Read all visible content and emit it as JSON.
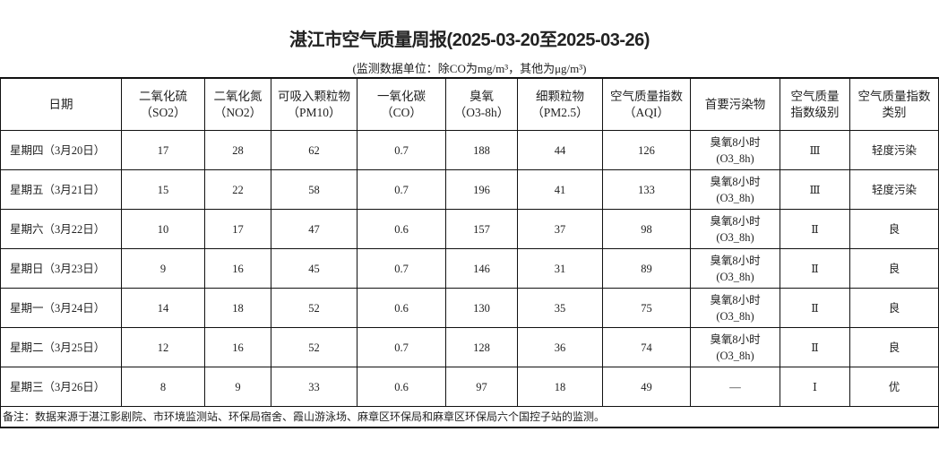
{
  "title": "湛江市空气质量周报(2025-03-20至2025-03-26)",
  "unit_note": "(监测数据单位：除CO为mg/m³，其他为μg/m³)",
  "columns": [
    {
      "l1": "日期",
      "l2": ""
    },
    {
      "l1": "二氧化硫",
      "l2": "（SO2）"
    },
    {
      "l1": "二氧化氮",
      "l2": "（NO2）"
    },
    {
      "l1": "可吸入颗粒物",
      "l2": "（PM10）"
    },
    {
      "l1": "一氧化碳",
      "l2": "（CO）"
    },
    {
      "l1": "臭氧",
      "l2": "（O3-8h）"
    },
    {
      "l1": "细颗粒物",
      "l2": "（PM2.5）"
    },
    {
      "l1": "空气质量指数",
      "l2": "（AQI）"
    },
    {
      "l1": "首要污染物",
      "l2": ""
    },
    {
      "l1": "空气质量",
      "l2": "指数级别"
    },
    {
      "l1": "空气质量指数",
      "l2": "类别"
    }
  ],
  "rows": [
    {
      "date": "星期四（3月20日）",
      "so2": "17",
      "no2": "28",
      "pm10": "62",
      "co": "0.7",
      "o3": "188",
      "pm25": "44",
      "aqi": "126",
      "primary": "臭氧8小时",
      "primary2": "(O3_8h)",
      "level": "Ⅲ",
      "category": "轻度污染"
    },
    {
      "date": "星期五（3月21日）",
      "so2": "15",
      "no2": "22",
      "pm10": "58",
      "co": "0.7",
      "o3": "196",
      "pm25": "41",
      "aqi": "133",
      "primary": "臭氧8小时",
      "primary2": "(O3_8h)",
      "level": "Ⅲ",
      "category": "轻度污染"
    },
    {
      "date": "星期六（3月22日）",
      "so2": "10",
      "no2": "17",
      "pm10": "47",
      "co": "0.6",
      "o3": "157",
      "pm25": "37",
      "aqi": "98",
      "primary": "臭氧8小时",
      "primary2": "(O3_8h)",
      "level": "Ⅱ",
      "category": "良"
    },
    {
      "date": "星期日（3月23日）",
      "so2": "9",
      "no2": "16",
      "pm10": "45",
      "co": "0.7",
      "o3": "146",
      "pm25": "31",
      "aqi": "89",
      "primary": "臭氧8小时",
      "primary2": "(O3_8h)",
      "level": "Ⅱ",
      "category": "良"
    },
    {
      "date": "星期一（3月24日）",
      "so2": "14",
      "no2": "18",
      "pm10": "52",
      "co": "0.6",
      "o3": "130",
      "pm25": "35",
      "aqi": "75",
      "primary": "臭氧8小时",
      "primary2": "(O3_8h)",
      "level": "Ⅱ",
      "category": "良"
    },
    {
      "date": "星期二（3月25日）",
      "so2": "12",
      "no2": "16",
      "pm10": "52",
      "co": "0.7",
      "o3": "128",
      "pm25": "36",
      "aqi": "74",
      "primary": "臭氧8小时",
      "primary2": "(O3_8h)",
      "level": "Ⅱ",
      "category": "良"
    },
    {
      "date": "星期三（3月26日）",
      "so2": "8",
      "no2": "9",
      "pm10": "33",
      "co": "0.6",
      "o3": "97",
      "pm25": "18",
      "aqi": "49",
      "primary": "—",
      "primary2": "",
      "level": "Ⅰ",
      "category": "优"
    }
  ],
  "footnote": "备注：数据来源于湛江影剧院、市环境监测站、环保局宿舍、霞山游泳场、麻章区环保局和麻章区环保局六个国控子站的监测。"
}
